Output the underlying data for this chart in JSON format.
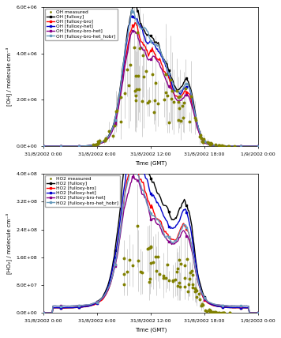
{
  "xlabel": "Time (GMT)",
  "ylabel_a": "[OH] / molecule cm⁻³",
  "ylabel_b": "[HO₂] / molecule cm⁻³",
  "x_ticks_labels": [
    "31/8/2002 0:00",
    "31/8/2002 6:00",
    "31/8/2002 12:00",
    "31/8/2002 18:00",
    "1/9/2002 0:00"
  ],
  "ylim_a": [
    0,
    6000000.0
  ],
  "ylim_b": [
    0,
    400000000.0
  ],
  "yticks_a": [
    0,
    2000000.0,
    4000000.0,
    6000000.0
  ],
  "ytick_labels_a": [
    "0.0E+00",
    "2.0E+06",
    "4.0E+06",
    "6.0E+06"
  ],
  "yticks_b": [
    0,
    80000000.0,
    160000000.0,
    240000000.0,
    320000000.0,
    400000000.0
  ],
  "ytick_labels_b": [
    "0.0E+00",
    "8.0E+07",
    "1.6E+08",
    "2.4E+08",
    "3.2E+08",
    "4.0E+08"
  ],
  "legend_labels_a": [
    "OH measured",
    "OH [fulloxy]",
    "OH [fulloxy-bro]",
    "OH [fulloxy-het]",
    "OH [fulloxy-bro-het]",
    "OH [fulloxy-bro-het_hobr]"
  ],
  "legend_labels_b": [
    "HO2 measured",
    "HO2 [fulloxy]",
    "HO2 [fulloxy-bro]",
    "HO2 [fulloxy-het]",
    "HO2 [fulloxy-bro-het]",
    "HO2 [fulloxy-bro-het_hobr]"
  ],
  "colors": {
    "measured": "#808000",
    "fulloxy": "#000000",
    "fulloxy_bro": "#ff0000",
    "fulloxy_het": "#0000cc",
    "fulloxy_bro_het": "#880088",
    "fulloxy_bro_het_hobr": "#6699bb"
  },
  "background_color": "#ffffff"
}
